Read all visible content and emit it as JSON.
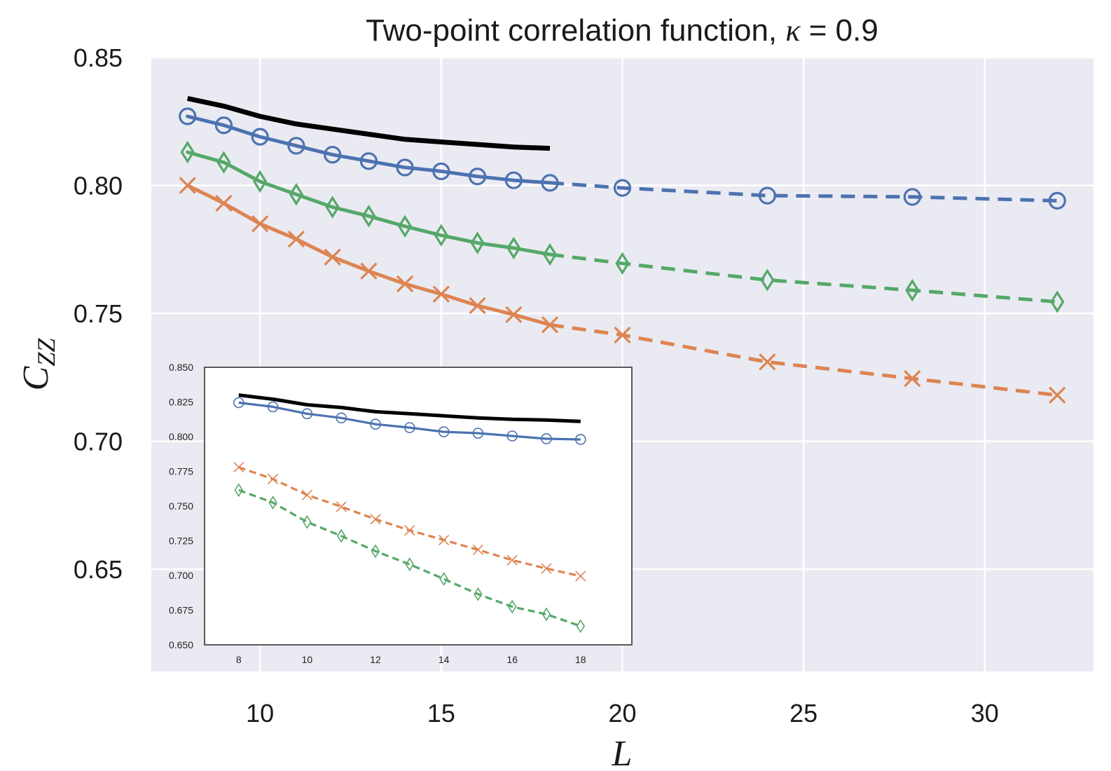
{
  "colors": {
    "plot_bg": "#eaeaf2",
    "grid": "#ffffff",
    "black": "#000000",
    "blue": "#4c72b0",
    "green": "#55a868",
    "orange": "#dd8452",
    "inset_frame": "#333333"
  },
  "chart_data": [
    {
      "type": "line",
      "title_prefix": "Two-point correlation function, ",
      "title_symbol": "κ",
      "title_suffix": " = 0.9",
      "xlabel": "L",
      "ylabel_main": "C",
      "ylabel_sub": "ZZ",
      "xlim": [
        7,
        33
      ],
      "ylim": [
        0.61,
        0.85
      ],
      "xticks": [
        10,
        15,
        20,
        25,
        30
      ],
      "xtick_labels": [
        "10",
        "15",
        "20",
        "25",
        "30"
      ],
      "yticks": [
        0.65,
        0.7,
        0.75,
        0.8,
        0.85
      ],
      "ytick_labels": [
        "0.65",
        "0.70",
        "0.75",
        "0.80",
        "0.85"
      ],
      "grid": true,
      "series": [
        {
          "name": "black",
          "color_key": "black",
          "marker": "none",
          "x": [
            8,
            9,
            10,
            11,
            12,
            13,
            14,
            15,
            16,
            17,
            18
          ],
          "y": [
            0.834,
            0.831,
            0.827,
            0.824,
            0.822,
            0.82,
            0.818,
            0.817,
            0.816,
            0.815,
            0.8145
          ]
        },
        {
          "name": "blue",
          "color_key": "blue",
          "marker": "circle",
          "x": [
            8,
            9,
            10,
            11,
            12,
            13,
            14,
            15,
            16,
            17,
            18,
            20,
            24,
            28,
            32
          ],
          "y": [
            0.827,
            0.8235,
            0.819,
            0.8155,
            0.812,
            0.8095,
            0.807,
            0.8055,
            0.8035,
            0.802,
            0.801,
            0.799,
            0.796,
            0.7955,
            0.794
          ],
          "solid_until_x": 18
        },
        {
          "name": "green",
          "color_key": "green",
          "marker": "diamond",
          "x": [
            8,
            9,
            10,
            11,
            12,
            13,
            14,
            15,
            16,
            17,
            18,
            20,
            24,
            28,
            32
          ],
          "y": [
            0.813,
            0.809,
            0.8015,
            0.7965,
            0.7915,
            0.788,
            0.784,
            0.7805,
            0.7775,
            0.7755,
            0.773,
            0.7695,
            0.763,
            0.759,
            0.7545
          ],
          "solid_until_x": 18
        },
        {
          "name": "orange",
          "color_key": "orange",
          "marker": "x",
          "x": [
            8,
            9,
            10,
            11,
            12,
            13,
            14,
            15,
            16,
            17,
            18,
            20,
            24,
            28,
            32
          ],
          "y": [
            0.8,
            0.793,
            0.785,
            0.779,
            0.772,
            0.7665,
            0.7615,
            0.7575,
            0.753,
            0.7495,
            0.7455,
            0.7415,
            0.731,
            0.7245,
            0.718
          ],
          "solid_until_x": 18
        }
      ]
    },
    {
      "type": "line",
      "role": "inset",
      "xlim": [
        7,
        19.5
      ],
      "ylim": [
        0.65,
        0.85
      ],
      "xticks": [
        8,
        10,
        12,
        14,
        16,
        18
      ],
      "xtick_labels": [
        "8",
        "10",
        "12",
        "14",
        "16",
        "18"
      ],
      "yticks": [
        0.65,
        0.675,
        0.7,
        0.725,
        0.75,
        0.775,
        0.8,
        0.825,
        0.85
      ],
      "ytick_labels": [
        "0.650",
        "0.675",
        "0.700",
        "0.725",
        "0.750",
        "0.775",
        "0.800",
        "0.825",
        "0.850"
      ],
      "grid": false,
      "series": [
        {
          "name": "inset-black",
          "color_key": "black",
          "marker": "none",
          "dashed": false,
          "x": [
            8,
            9,
            10,
            11,
            12,
            13,
            14,
            15,
            16,
            17,
            18
          ],
          "y": [
            0.83,
            0.827,
            0.823,
            0.821,
            0.818,
            0.8165,
            0.815,
            0.8135,
            0.8125,
            0.812,
            0.811
          ]
        },
        {
          "name": "inset-blue",
          "color_key": "blue",
          "marker": "circle",
          "dashed": false,
          "x": [
            8,
            9,
            10,
            11,
            12,
            13,
            14,
            15,
            16,
            17,
            18
          ],
          "y": [
            0.8245,
            0.8215,
            0.8165,
            0.8135,
            0.809,
            0.8065,
            0.8035,
            0.8025,
            0.8005,
            0.7985,
            0.798
          ]
        },
        {
          "name": "inset-orange",
          "color_key": "orange",
          "marker": "x",
          "dashed": true,
          "x": [
            8,
            9,
            10,
            11,
            12,
            13,
            14,
            15,
            16,
            17,
            18
          ],
          "y": [
            0.778,
            0.7695,
            0.758,
            0.7495,
            0.7405,
            0.7325,
            0.7255,
            0.7185,
            0.711,
            0.705,
            0.6995
          ]
        },
        {
          "name": "inset-green",
          "color_key": "green",
          "marker": "diamond",
          "dashed": true,
          "x": [
            8,
            9,
            10,
            11,
            12,
            13,
            14,
            15,
            16,
            17,
            18
          ],
          "y": [
            0.7615,
            0.7525,
            0.7385,
            0.7285,
            0.7175,
            0.708,
            0.6975,
            0.6865,
            0.6775,
            0.672,
            0.6635
          ]
        }
      ]
    }
  ]
}
